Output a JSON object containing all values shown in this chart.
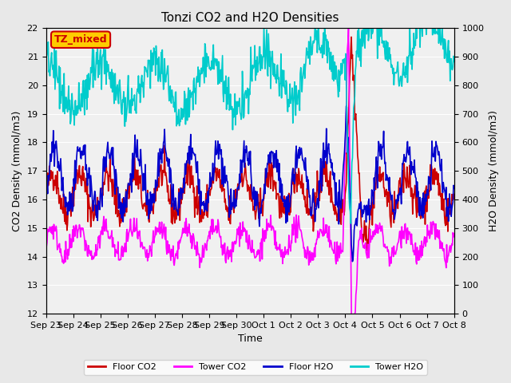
{
  "title": "Tonzi CO2 and H2O Densities",
  "xlabel": "Time",
  "ylabel_left": "CO2 Density (mmol/m3)",
  "ylabel_right": "H2O Density (mmol/m3)",
  "ylim_left": [
    12.0,
    22.0
  ],
  "ylim_right": [
    0,
    1000
  ],
  "yticks_left": [
    12.0,
    13.0,
    14.0,
    15.0,
    16.0,
    17.0,
    18.0,
    19.0,
    20.0,
    21.0,
    22.0
  ],
  "yticks_right": [
    0,
    100,
    200,
    300,
    400,
    500,
    600,
    700,
    800,
    900,
    1000
  ],
  "annotation_text": "TZ_mixed",
  "annotation_color": "#cc0000",
  "annotation_bg": "#ffcc00",
  "bg_color": "#e8e8e8",
  "plot_bg": "#f0f0f0",
  "colors": {
    "floor_co2": "#cc0000",
    "tower_co2": "#ff00ff",
    "floor_h2o": "#0000cc",
    "tower_h2o": "#00cccc"
  },
  "legend_labels": [
    "Floor CO2",
    "Tower CO2",
    "Floor H2O",
    "Tower H2O"
  ],
  "xtick_positions": [
    0,
    1,
    2,
    3,
    4,
    5,
    6,
    7,
    8,
    9,
    10,
    11,
    12,
    13,
    14,
    15
  ],
  "xtick_labels": [
    "Sep 23",
    "Sep 24",
    "Sep 25",
    "Sep 26",
    "Sep 27",
    "Sep 28",
    "Sep 29",
    "Sep 30",
    "Oct 1",
    "Oct 2",
    "Oct 3",
    "Oct 4",
    "Oct 5",
    "Oct 6",
    "Oct 7",
    "Oct 8"
  ],
  "num_days": 15,
  "seed": 42
}
